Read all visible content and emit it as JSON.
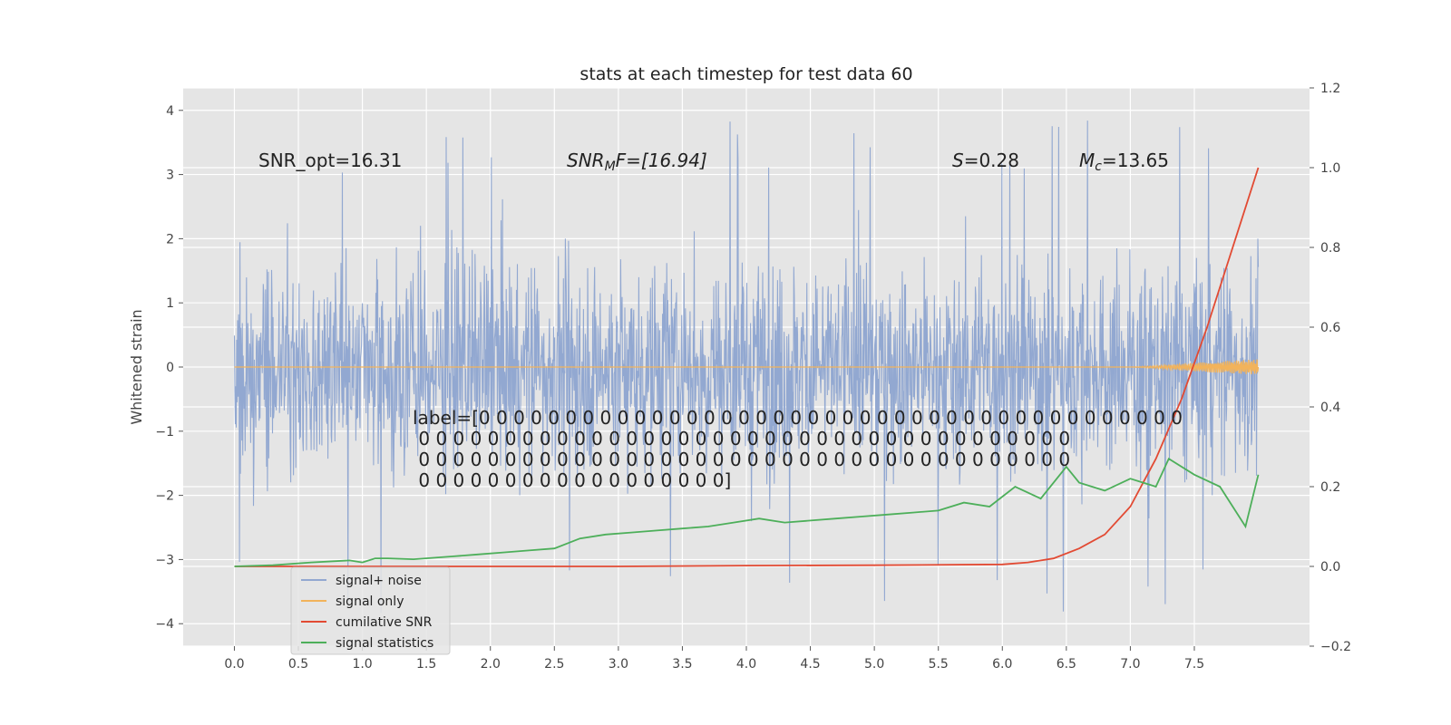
{
  "chart_data": {
    "type": "line",
    "title": "stats at each timestep for test data 60",
    "ylabel": "Whitened strain",
    "xlabel": "",
    "xlim": [
      -0.4,
      8.4
    ],
    "ylim": [
      -4.35,
      4.35
    ],
    "ylim_right": [
      -0.2,
      1.2
    ],
    "xticks": [
      "0.0",
      "0.5",
      "1.0",
      "1.5",
      "2.0",
      "2.5",
      "3.0",
      "3.5",
      "4.0",
      "4.5",
      "5.0",
      "5.5",
      "6.0",
      "6.5",
      "7.0",
      "7.5"
    ],
    "yticks_left": [
      "4",
      "3",
      "2",
      "1",
      "0",
      "−1",
      "−2",
      "−3",
      "−4"
    ],
    "yticks_right": [
      "1.2",
      "1.0",
      "0.8",
      "0.6",
      "0.4",
      "0.2",
      "0.0",
      "−0.2"
    ],
    "grid": true,
    "legend_location": "lower-left",
    "annotations": {
      "snr_opt": "SNR_opt=16.31",
      "snr_mf_main": "SNR",
      "snr_mf_sub": "M",
      "snr_mf_rest": "F=[16.94]",
      "s_main": "S",
      "s_rest": "=0.28",
      "mc_main": "M",
      "mc_sub": "c",
      "mc_rest": "=13.65"
    },
    "label_lines": [
      "label=[0 0 0 0 0 0 0 0 0 0 0 0 0 0 0 0 0 0 0 0 0 0 0 0 0 0 0 0 0 0 0 0 0 0 0 0 0 0 0 0 0",
      " 0 0 0 0 0 0 0 0 0 0 0 0 0 0 0 0 0 0 0 0 0 0 0 0 0 0 0 0 0 0 0 0 0 0 0 0 0 0",
      " 0 0 0 0 0 0 0 0 0 0 0 0 0 0 0 0 0 0 0 0 0 0 0 0 0 0 0 0 0 0 0 0 0 0 0 0 0 0",
      " 0 0 0 0 0 0 0 0 0 0 0 0 0 0 0 0 0 0]"
    ],
    "series": [
      {
        "name": "signal+ noise",
        "color": "#92a8d1",
        "axis": "left",
        "x_range": [
          0.0,
          8.0
        ],
        "amplitude_range": [
          -4.0,
          4.0
        ],
        "note_values": "dense noise, typical envelope ±2.5"
      },
      {
        "name": "signal only",
        "color": "#f2b35b",
        "axis": "left",
        "x": [
          0.0,
          7.0,
          7.2,
          7.4,
          7.6,
          7.8,
          8.0
        ],
        "envelope": [
          0.0,
          0.0,
          0.02,
          0.05,
          0.08,
          0.1,
          0.12
        ]
      },
      {
        "name": "cumilative SNR",
        "color": "#e24a33",
        "axis": "right",
        "x": [
          0.0,
          1.0,
          2.0,
          3.0,
          4.0,
          5.0,
          6.0,
          6.2,
          6.4,
          6.6,
          6.8,
          7.0,
          7.2,
          7.4,
          7.6,
          7.8,
          8.0
        ],
        "y": [
          0.0,
          0.0,
          0.0,
          0.0,
          0.002,
          0.003,
          0.005,
          0.01,
          0.02,
          0.045,
          0.08,
          0.15,
          0.27,
          0.42,
          0.6,
          0.8,
          1.0
        ]
      },
      {
        "name": "signal statistics",
        "color": "#4daf5a",
        "axis": "right",
        "x": [
          0.0,
          0.3,
          0.6,
          0.9,
          1.0,
          1.1,
          1.2,
          1.4,
          1.7,
          1.9,
          2.1,
          2.3,
          2.5,
          2.7,
          2.9,
          3.1,
          3.3,
          3.5,
          3.7,
          3.9,
          4.1,
          4.3,
          4.5,
          4.7,
          4.9,
          5.1,
          5.3,
          5.5,
          5.7,
          5.9,
          6.1,
          6.3,
          6.5,
          6.6,
          6.8,
          7.0,
          7.2,
          7.3,
          7.5,
          7.7,
          7.9,
          8.0
        ],
        "y": [
          0.0,
          0.003,
          0.01,
          0.015,
          0.01,
          0.02,
          0.02,
          0.018,
          0.025,
          0.03,
          0.035,
          0.04,
          0.045,
          0.07,
          0.08,
          0.085,
          0.09,
          0.095,
          0.1,
          0.11,
          0.12,
          0.11,
          0.115,
          0.12,
          0.125,
          0.13,
          0.135,
          0.14,
          0.16,
          0.15,
          0.2,
          0.17,
          0.25,
          0.21,
          0.19,
          0.22,
          0.2,
          0.27,
          0.23,
          0.2,
          0.1,
          0.23
        ]
      }
    ]
  }
}
